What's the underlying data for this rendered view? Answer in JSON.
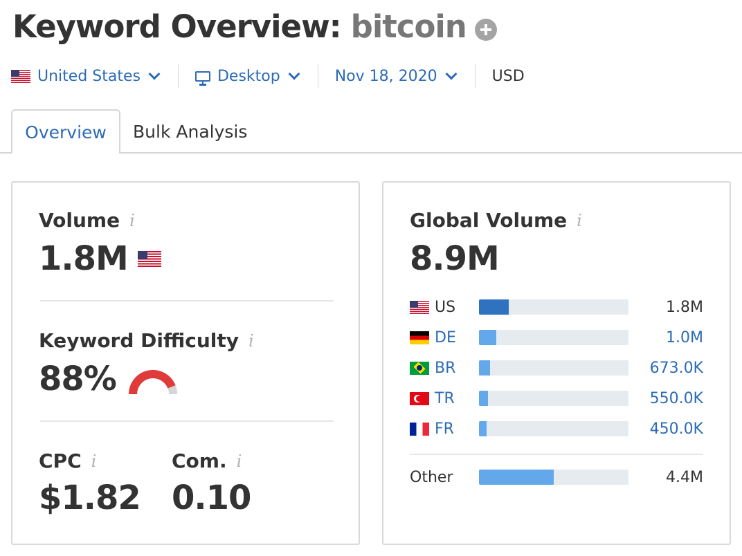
{
  "header": {
    "title": "Keyword Overview:",
    "keyword": "bitcoin"
  },
  "filters": {
    "country": "United States",
    "device": "Desktop",
    "date": "Nov 18, 2020",
    "currency": "USD"
  },
  "tabs": [
    {
      "label": "Overview",
      "active": true
    },
    {
      "label": "Bulk Analysis",
      "active": false
    }
  ],
  "volume": {
    "label": "Volume",
    "value": "1.8M"
  },
  "keyword_difficulty": {
    "label": "Keyword Difficulty",
    "value": "88%",
    "percent": 88,
    "color": "#e03a3a"
  },
  "cpc": {
    "label": "CPC",
    "value": "$1.82"
  },
  "competition": {
    "label": "Com.",
    "value": "0.10"
  },
  "global_volume": {
    "label": "Global Volume",
    "value": "8.9M",
    "countries": [
      {
        "code": "US",
        "value": "1.8M",
        "share": 0.2
      },
      {
        "code": "DE",
        "value": "1.0M",
        "share": 0.115
      },
      {
        "code": "BR",
        "value": "673.0K",
        "share": 0.075
      },
      {
        "code": "TR",
        "value": "550.0K",
        "share": 0.062
      },
      {
        "code": "FR",
        "value": "450.0K",
        "share": 0.05
      }
    ],
    "other": {
      "label": "Other",
      "value": "4.4M",
      "share": 0.5
    }
  },
  "colors": {
    "link": "#2c6bb5",
    "bar_us": "#2f73c0",
    "bar": "#62a8ea",
    "track": "#e6ebf0"
  },
  "icons": [
    "add-icon",
    "us-flag-icon",
    "monitor-icon",
    "chevron-down-icon",
    "info-icon"
  ]
}
